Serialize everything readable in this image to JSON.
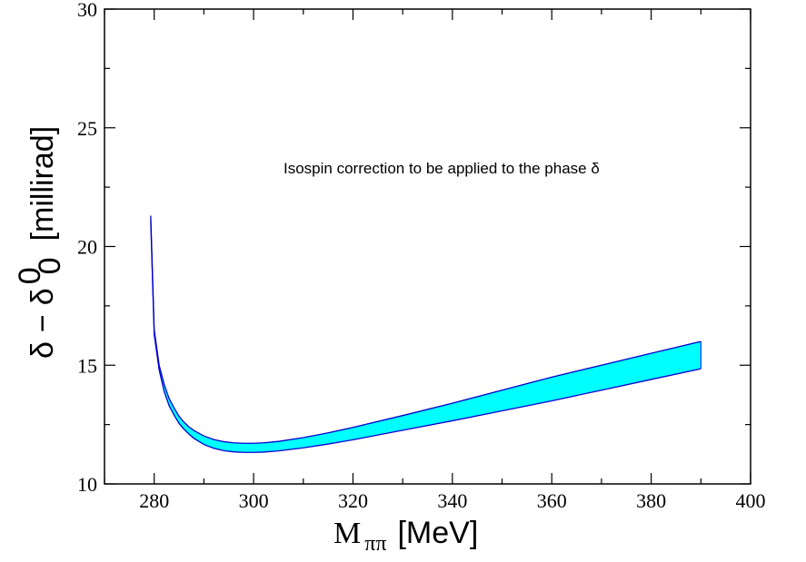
{
  "chart_data": {
    "type": "area",
    "xlabel": {
      "main": "M",
      "sub": "ππ",
      "unit": "[MeV]"
    },
    "ylabel": {
      "delta": "δ",
      "minus": "−",
      "delta0": "δ",
      "sup": "0",
      "sub": "0",
      "unit": "[millirad]"
    },
    "xlim": [
      270,
      400
    ],
    "ylim": [
      10,
      30
    ],
    "xticks": [
      280,
      300,
      320,
      340,
      360,
      380,
      400
    ],
    "yticks": [
      10,
      15,
      20,
      25,
      30
    ],
    "annotation": "Isospin correction to be applied to the phase  δ",
    "band_color": "#00ffff",
    "line_color": "#0000cc",
    "x": [
      279.3,
      280,
      281,
      282,
      283,
      284,
      285,
      286,
      287,
      288,
      290,
      292,
      294,
      296,
      298,
      300,
      302,
      305,
      310,
      315,
      320,
      330,
      340,
      350,
      360,
      370,
      380,
      390
    ],
    "upper": [
      21.3,
      16.5,
      15.0,
      14.2,
      13.6,
      13.2,
      12.85,
      12.6,
      12.4,
      12.25,
      12.02,
      11.87,
      11.78,
      11.73,
      11.71,
      11.71,
      11.73,
      11.79,
      11.95,
      12.15,
      12.38,
      12.88,
      13.4,
      13.95,
      14.5,
      15.0,
      15.5,
      16.0
    ],
    "lower": [
      21.1,
      16.3,
      14.8,
      13.9,
      13.3,
      12.9,
      12.55,
      12.3,
      12.1,
      11.92,
      11.66,
      11.5,
      11.4,
      11.35,
      11.33,
      11.33,
      11.34,
      11.39,
      11.52,
      11.68,
      11.86,
      12.26,
      12.66,
      13.08,
      13.5,
      13.95,
      14.4,
      14.85
    ]
  }
}
